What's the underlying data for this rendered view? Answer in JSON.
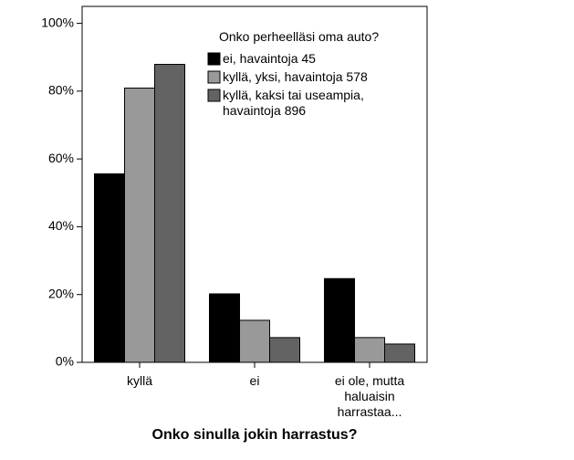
{
  "chart_data": {
    "type": "bar",
    "x_label": "Onko sinulla jokin harrastus?",
    "legend_title": "Onko perheelläsi oma auto?",
    "legend": "top-right",
    "categories": [
      "kyllä",
      "ei",
      "ei ole, mutta haluaisin harrastaa..."
    ],
    "series": [
      {
        "name": "ei, havaintoja 45",
        "color": "#000000",
        "values": [
          55.6,
          20.2,
          24.7
        ]
      },
      {
        "name": "kyllä, yksi, havaintoja 578",
        "color": "#999999",
        "values": [
          80.9,
          12.4,
          7.3
        ]
      },
      {
        "name": "kyllä, kaksi tai useampia, havaintoja 896",
        "color": "#636363",
        "values": [
          87.9,
          7.3,
          5.4
        ]
      }
    ],
    "ylim": [
      0,
      105
    ],
    "yticks": [
      {
        "value": 0,
        "label": "0%"
      },
      {
        "value": 20,
        "label": "20%"
      },
      {
        "value": 40,
        "label": "40%"
      },
      {
        "value": 60,
        "label": "60%"
      },
      {
        "value": 80,
        "label": "80%"
      },
      {
        "value": 100,
        "label": "100%"
      }
    ]
  }
}
